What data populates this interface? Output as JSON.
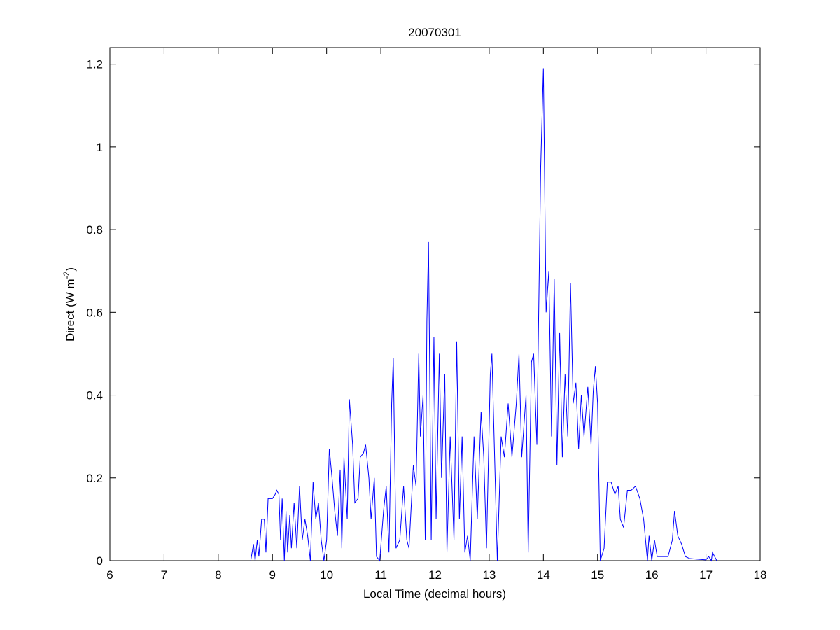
{
  "chart_data": {
    "type": "line",
    "title": "20070301",
    "xlabel": "Local Time (decimal hours)",
    "ylabel": [
      "Direct (W m",
      "-2",
      ")"
    ],
    "x": [
      8.6,
      8.65,
      8.68,
      8.72,
      8.75,
      8.8,
      8.85,
      8.88,
      8.92,
      9.0,
      9.05,
      9.08,
      9.12,
      9.15,
      9.18,
      9.22,
      9.25,
      9.28,
      9.32,
      9.35,
      9.4,
      9.45,
      9.5,
      9.55,
      9.6,
      9.65,
      9.7,
      9.75,
      9.8,
      9.85,
      9.9,
      9.95,
      10.0,
      10.05,
      10.1,
      10.15,
      10.2,
      10.25,
      10.28,
      10.32,
      10.38,
      10.42,
      10.48,
      10.52,
      10.58,
      10.62,
      10.68,
      10.72,
      10.78,
      10.82,
      10.88,
      10.92,
      10.98,
      11.05,
      11.1,
      11.15,
      11.2,
      11.23,
      11.28,
      11.35,
      11.42,
      11.48,
      11.52,
      11.6,
      11.65,
      11.7,
      11.73,
      11.78,
      11.82,
      11.85,
      11.88,
      11.93,
      11.98,
      12.02,
      12.08,
      12.12,
      12.18,
      12.22,
      12.28,
      12.35,
      12.4,
      12.45,
      12.5,
      12.55,
      12.6,
      12.65,
      12.72,
      12.78,
      12.85,
      12.9,
      12.95,
      13.02,
      13.05,
      13.1,
      13.15,
      13.22,
      13.28,
      13.35,
      13.42,
      13.5,
      13.55,
      13.6,
      13.68,
      13.72,
      13.78,
      13.82,
      13.88,
      13.95,
      14.0,
      14.05,
      14.1,
      14.15,
      14.2,
      14.25,
      14.3,
      14.35,
      14.4,
      14.45,
      14.5,
      14.55,
      14.6,
      14.65,
      14.7,
      14.75,
      14.82,
      14.88,
      14.92,
      14.96,
      15.0,
      15.05,
      15.12,
      15.18,
      15.25,
      15.32,
      15.38,
      15.42,
      15.48,
      15.55,
      15.62,
      15.7,
      15.78,
      15.85,
      15.92,
      15.95,
      16.0,
      16.05,
      16.1,
      16.3,
      16.38,
      16.42,
      16.48,
      16.55,
      16.62,
      16.7,
      17.0,
      17.05,
      17.1,
      17.12,
      17.2
    ],
    "series": [
      {
        "name": "Direct",
        "color": "#0000ff",
        "values": [
          0,
          0.04,
          0.0,
          0.05,
          0.01,
          0.1,
          0.1,
          0.02,
          0.15,
          0.15,
          0.16,
          0.17,
          0.16,
          0.05,
          0.15,
          0.0,
          0.12,
          0.02,
          0.11,
          0.03,
          0.14,
          0.03,
          0.18,
          0.05,
          0.1,
          0.06,
          0.0,
          0.19,
          0.1,
          0.14,
          0.05,
          0.0,
          0.05,
          0.27,
          0.2,
          0.12,
          0.06,
          0.22,
          0.03,
          0.25,
          0.1,
          0.39,
          0.28,
          0.14,
          0.15,
          0.25,
          0.26,
          0.28,
          0.2,
          0.1,
          0.2,
          0.01,
          0.0,
          0.12,
          0.18,
          0.02,
          0.38,
          0.49,
          0.03,
          0.05,
          0.18,
          0.05,
          0.03,
          0.23,
          0.18,
          0.5,
          0.3,
          0.4,
          0.05,
          0.58,
          0.77,
          0.05,
          0.54,
          0.1,
          0.5,
          0.2,
          0.45,
          0.02,
          0.3,
          0.05,
          0.53,
          0.1,
          0.3,
          0.02,
          0.06,
          0.0,
          0.3,
          0.1,
          0.36,
          0.25,
          0.03,
          0.45,
          0.5,
          0.25,
          0.0,
          0.3,
          0.25,
          0.38,
          0.25,
          0.38,
          0.5,
          0.25,
          0.4,
          0.02,
          0.48,
          0.5,
          0.28,
          0.95,
          1.19,
          0.6,
          0.7,
          0.3,
          0.68,
          0.23,
          0.55,
          0.25,
          0.45,
          0.3,
          0.67,
          0.38,
          0.43,
          0.27,
          0.4,
          0.3,
          0.42,
          0.28,
          0.41,
          0.47,
          0.38,
          0.0,
          0.03,
          0.19,
          0.19,
          0.16,
          0.18,
          0.1,
          0.08,
          0.17,
          0.17,
          0.18,
          0.15,
          0.1,
          0.0,
          0.06,
          0.0,
          0.05,
          0.01,
          0.01,
          0.05,
          0.12,
          0.06,
          0.04,
          0.01,
          0.005,
          0.002,
          0.01,
          0.0,
          0.02,
          0.0
        ]
      }
    ],
    "xlim": [
      6,
      18
    ],
    "xticks": [
      6,
      7,
      8,
      9,
      10,
      11,
      12,
      13,
      14,
      15,
      16,
      17,
      18
    ],
    "ylim": [
      0,
      1.24
    ],
    "yticks": [
      0,
      0.2,
      0.4,
      0.6,
      0.8,
      1,
      1.2
    ],
    "grid": false
  }
}
